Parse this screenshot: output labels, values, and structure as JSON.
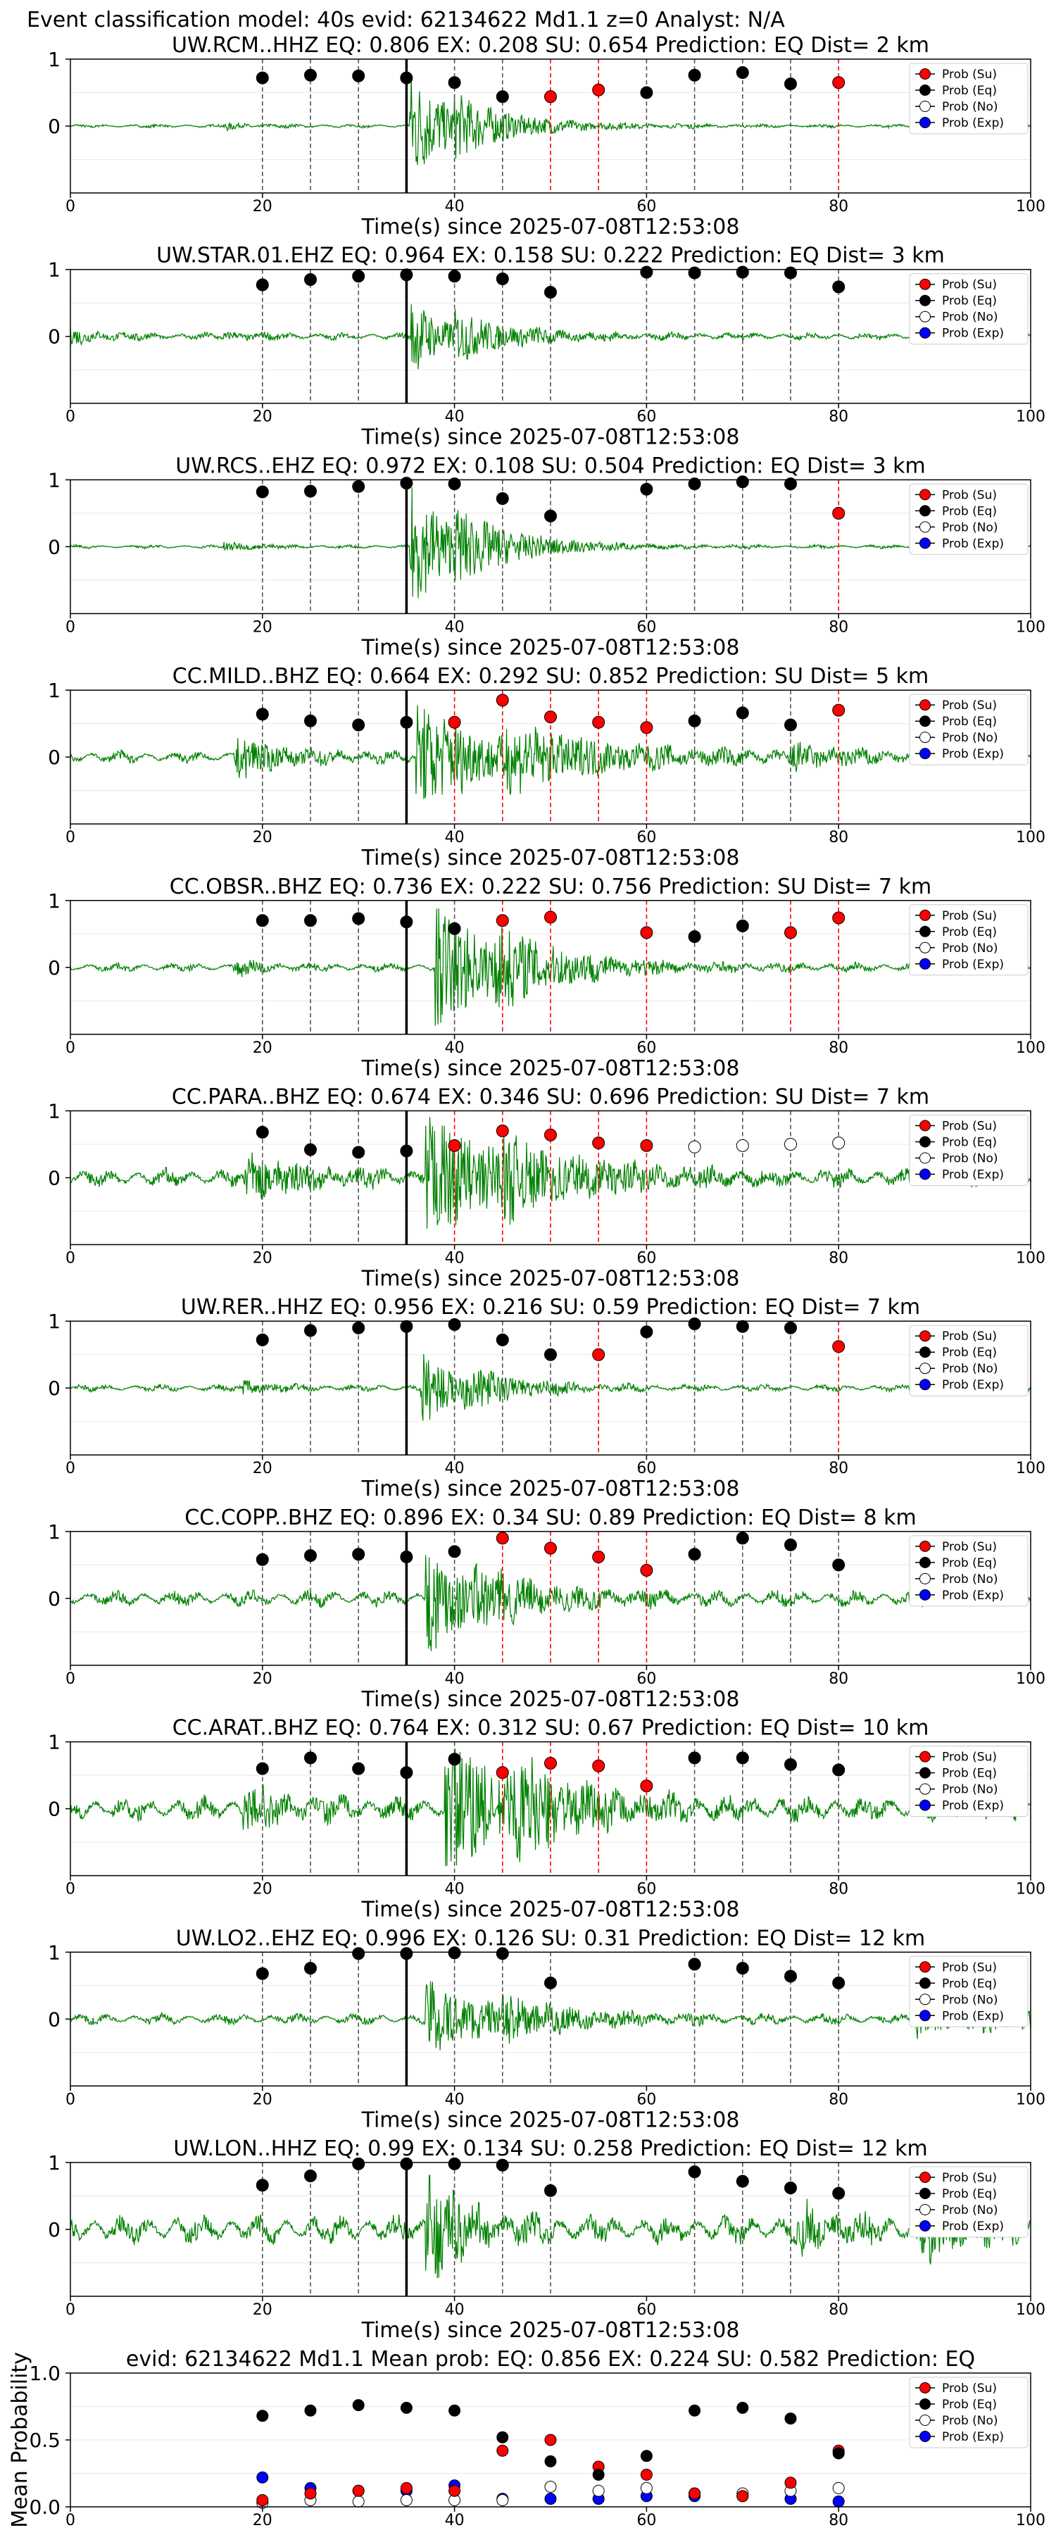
{
  "page_title": "Event classification model: 40s evid: 62134622 Md1.1 z=0 Analyst: N/A",
  "legend_labels": [
    "Prob (Su)",
    "Prob (Eq)",
    "Prob (No)",
    "Prob (Exp)"
  ],
  "colors": {
    "su": "#ff0000",
    "eq": "#000000",
    "no": "#ffffff",
    "exp": "#0000ff",
    "waveform": "#008000",
    "pick_line": "#000000",
    "eq_window_line": "#555555",
    "su_window_line": "#ff0000"
  },
  "chart_data": [
    {
      "type": "scatter",
      "title": "UW.RCM..HHZ   EQ: 0.806  EX: 0.208  SU: 0.654   Prediction: EQ    Dist= 2 km",
      "xlabel": "Time(s) since 2025-07-08T12:53:08",
      "xlim": [
        0,
        100
      ],
      "ylim": [
        -1,
        1
      ],
      "xticks": [
        "0",
        "20",
        "40",
        "60",
        "80",
        "100"
      ],
      "yticks": [
        "1",
        "0"
      ],
      "pick_time": 35,
      "windows": [
        20,
        25,
        30,
        35,
        40,
        45,
        50,
        55,
        60,
        65,
        70,
        75,
        80
      ],
      "winners": [
        "eq",
        "eq",
        "eq",
        "eq",
        "eq",
        "eq",
        "su",
        "su",
        "eq",
        "eq",
        "eq",
        "eq",
        "su"
      ],
      "probs": [
        0.72,
        0.76,
        0.75,
        0.72,
        0.65,
        0.44,
        0.44,
        0.54,
        0.5,
        0.76,
        0.8,
        0.63,
        0.65
      ],
      "waveform": {
        "noise": 0.02,
        "bursts": [
          [
            16,
            3,
            0.05
          ],
          [
            35.3,
            4,
            0.9
          ],
          [
            40,
            8,
            0.25
          ]
        ]
      }
    },
    {
      "type": "scatter",
      "title": "UW.STAR.01.EHZ   EQ: 0.964  EX: 0.158  SU: 0.222   Prediction: EQ    Dist= 3 km",
      "xlabel": "Time(s) since 2025-07-08T12:53:08",
      "xlim": [
        0,
        100
      ],
      "ylim": [
        -1,
        1
      ],
      "xticks": [
        "0",
        "20",
        "40",
        "60",
        "80",
        "100"
      ],
      "yticks": [
        "1",
        "0"
      ],
      "pick_time": 35,
      "windows": [
        20,
        25,
        30,
        35,
        40,
        45,
        50,
        60,
        65,
        70,
        75,
        80
      ],
      "winners": [
        "eq",
        "eq",
        "eq",
        "eq",
        "eq",
        "eq",
        "eq",
        "eq",
        "eq",
        "eq",
        "eq",
        "eq"
      ],
      "probs": [
        0.77,
        0.85,
        0.9,
        0.92,
        0.9,
        0.86,
        0.66,
        0.96,
        0.95,
        0.96,
        0.95,
        0.74
      ],
      "waveform": {
        "noise": 0.04,
        "bursts": [
          [
            0,
            4,
            0.1
          ],
          [
            16,
            3,
            0.06
          ],
          [
            35.5,
            4,
            0.55
          ],
          [
            40,
            8,
            0.2
          ]
        ]
      }
    },
    {
      "type": "scatter",
      "title": "UW.RCS..EHZ   EQ: 0.972  EX: 0.108  SU: 0.504   Prediction: EQ    Dist= 3 km",
      "xlabel": "Time(s) since 2025-07-08T12:53:08",
      "xlim": [
        0,
        100
      ],
      "ylim": [
        -1,
        1
      ],
      "xticks": [
        "0",
        "20",
        "40",
        "60",
        "80",
        "100"
      ],
      "yticks": [
        "1",
        "0"
      ],
      "pick_time": 35,
      "windows": [
        20,
        25,
        30,
        35,
        40,
        45,
        50,
        60,
        65,
        70,
        75,
        80
      ],
      "winners": [
        "eq",
        "eq",
        "eq",
        "eq",
        "eq",
        "eq",
        "eq",
        "eq",
        "eq",
        "eq",
        "eq",
        "su"
      ],
      "probs": [
        0.82,
        0.83,
        0.9,
        0.95,
        0.94,
        0.72,
        0.46,
        0.86,
        0.94,
        0.97,
        0.94,
        0.5
      ],
      "waveform": {
        "noise": 0.02,
        "bursts": [
          [
            16,
            3,
            0.08
          ],
          [
            35.3,
            5,
            0.95
          ],
          [
            40,
            8,
            0.25
          ]
        ]
      }
    },
    {
      "type": "scatter",
      "title": "CC.MILD..BHZ   EQ: 0.664  EX: 0.292  SU: 0.852   Prediction: SU    Dist= 5 km",
      "xlabel": "Time(s) since 2025-07-08T12:53:08",
      "xlim": [
        0,
        100
      ],
      "ylim": [
        -1,
        1
      ],
      "xticks": [
        "0",
        "20",
        "40",
        "60",
        "80",
        "100"
      ],
      "yticks": [
        "1",
        "0"
      ],
      "pick_time": 35,
      "windows": [
        20,
        25,
        30,
        35,
        40,
        45,
        50,
        55,
        60,
        65,
        70,
        75,
        80
      ],
      "winners": [
        "eq",
        "eq",
        "eq",
        "eq",
        "su",
        "su",
        "su",
        "su",
        "su",
        "eq",
        "eq",
        "eq",
        "su"
      ],
      "probs": [
        0.64,
        0.54,
        0.48,
        0.52,
        0.52,
        0.85,
        0.6,
        0.52,
        0.44,
        0.54,
        0.66,
        0.48,
        0.7
      ],
      "waveform": {
        "noise": 0.07,
        "bursts": [
          [
            17,
            5,
            0.3
          ],
          [
            36,
            8,
            0.8
          ],
          [
            45,
            12,
            0.3
          ],
          [
            75,
            6,
            0.15
          ]
        ]
      }
    },
    {
      "type": "scatter",
      "title": "CC.OBSR..BHZ   EQ: 0.736  EX: 0.222  SU: 0.756   Prediction: SU    Dist= 7 km",
      "xlabel": "Time(s) since 2025-07-08T12:53:08",
      "xlim": [
        0,
        100
      ],
      "ylim": [
        -1,
        1
      ],
      "xticks": [
        "0",
        "20",
        "40",
        "60",
        "80",
        "100"
      ],
      "yticks": [
        "1",
        "0"
      ],
      "pick_time": 35,
      "windows": [
        20,
        25,
        30,
        35,
        40,
        45,
        50,
        60,
        65,
        70,
        75,
        80
      ],
      "winners": [
        "eq",
        "eq",
        "eq",
        "eq",
        "eq",
        "su",
        "su",
        "su",
        "eq",
        "eq",
        "su",
        "su"
      ],
      "probs": [
        0.7,
        0.7,
        0.73,
        0.68,
        0.58,
        0.7,
        0.75,
        0.52,
        0.46,
        0.62,
        0.52,
        0.74
      ],
      "waveform": {
        "noise": 0.05,
        "bursts": [
          [
            17,
            3,
            0.1
          ],
          [
            38,
            7,
            0.9
          ],
          [
            44,
            8,
            0.3
          ]
        ]
      }
    },
    {
      "type": "scatter",
      "title": "CC.PARA..BHZ   EQ: 0.674  EX: 0.346  SU: 0.696   Prediction: SU    Dist= 7 km",
      "xlabel": "Time(s) since 2025-07-08T12:53:08",
      "xlim": [
        0,
        100
      ],
      "ylim": [
        -1,
        1
      ],
      "xticks": [
        "0",
        "20",
        "40",
        "60",
        "80",
        "100"
      ],
      "yticks": [
        "1",
        "0"
      ],
      "pick_time": 35,
      "windows": [
        20,
        25,
        30,
        35,
        40,
        45,
        50,
        55,
        60,
        65,
        70,
        75,
        80
      ],
      "winners": [
        "eq",
        "eq",
        "eq",
        "eq",
        "su",
        "su",
        "su",
        "su",
        "su",
        "no",
        "no",
        "no",
        "no"
      ],
      "probs": [
        0.68,
        0.42,
        0.38,
        0.4,
        0.48,
        0.7,
        0.64,
        0.52,
        0.48,
        0.46,
        0.48,
        0.5,
        0.52
      ],
      "waveform": {
        "noise": 0.1,
        "bursts": [
          [
            18,
            6,
            0.35
          ],
          [
            37,
            8,
            0.9
          ],
          [
            45,
            10,
            0.3
          ]
        ]
      }
    },
    {
      "type": "scatter",
      "title": "UW.RER..HHZ   EQ: 0.956  EX: 0.216  SU: 0.59   Prediction: EQ    Dist= 7 km",
      "xlabel": "Time(s) since 2025-07-08T12:53:08",
      "xlim": [
        0,
        100
      ],
      "ylim": [
        -1,
        1
      ],
      "xticks": [
        "0",
        "20",
        "40",
        "60",
        "80",
        "100"
      ],
      "yticks": [
        "1",
        "0"
      ],
      "pick_time": 35,
      "windows": [
        20,
        25,
        30,
        35,
        40,
        45,
        50,
        55,
        60,
        65,
        70,
        75,
        80
      ],
      "winners": [
        "eq",
        "eq",
        "eq",
        "eq",
        "eq",
        "eq",
        "eq",
        "su",
        "eq",
        "eq",
        "eq",
        "eq",
        "su"
      ],
      "probs": [
        0.72,
        0.86,
        0.9,
        0.92,
        0.95,
        0.72,
        0.5,
        0.5,
        0.84,
        0.96,
        0.92,
        0.9,
        0.62
      ],
      "waveform": {
        "noise": 0.04,
        "bursts": [
          [
            18,
            3,
            0.1
          ],
          [
            36.5,
            4,
            0.55
          ],
          [
            41,
            6,
            0.2
          ]
        ]
      }
    },
    {
      "type": "scatter",
      "title": "CC.COPP..BHZ   EQ: 0.896  EX: 0.34  SU: 0.89   Prediction: EQ    Dist= 8 km",
      "xlabel": "Time(s) since 2025-07-08T12:53:08",
      "xlim": [
        0,
        100
      ],
      "ylim": [
        -1,
        1
      ],
      "xticks": [
        "0",
        "20",
        "40",
        "60",
        "80",
        "100"
      ],
      "yticks": [
        "1",
        "0"
      ],
      "pick_time": 35,
      "windows": [
        20,
        25,
        30,
        35,
        40,
        45,
        50,
        55,
        60,
        65,
        70,
        75,
        80
      ],
      "winners": [
        "eq",
        "eq",
        "eq",
        "eq",
        "eq",
        "su",
        "su",
        "su",
        "su",
        "eq",
        "eq",
        "eq",
        "eq"
      ],
      "probs": [
        0.58,
        0.64,
        0.66,
        0.62,
        0.7,
        0.9,
        0.75,
        0.62,
        0.42,
        0.66,
        0.9,
        0.8,
        0.5
      ],
      "waveform": {
        "noise": 0.09,
        "bursts": [
          [
            37,
            4,
            0.9
          ],
          [
            42,
            8,
            0.3
          ]
        ]
      }
    },
    {
      "type": "scatter",
      "title": "CC.ARAT..BHZ   EQ: 0.764  EX: 0.312  SU: 0.67   Prediction: EQ    Dist= 10 km",
      "xlabel": "Time(s) since 2025-07-08T12:53:08",
      "xlim": [
        0,
        100
      ],
      "ylim": [
        -1,
        1
      ],
      "xticks": [
        "0",
        "20",
        "40",
        "60",
        "80",
        "100"
      ],
      "yticks": [
        "1",
        "0"
      ],
      "pick_time": 35,
      "windows": [
        20,
        25,
        30,
        35,
        40,
        45,
        50,
        55,
        60,
        65,
        70,
        75,
        80
      ],
      "winners": [
        "eq",
        "eq",
        "eq",
        "eq",
        "eq",
        "su",
        "su",
        "su",
        "su",
        "eq",
        "eq",
        "eq",
        "eq"
      ],
      "probs": [
        0.6,
        0.76,
        0.6,
        0.54,
        0.74,
        0.54,
        0.68,
        0.64,
        0.34,
        0.76,
        0.76,
        0.66,
        0.58
      ],
      "waveform": {
        "noise": 0.14,
        "bursts": [
          [
            18,
            5,
            0.25
          ],
          [
            39,
            8,
            0.95
          ],
          [
            46,
            6,
            0.4
          ]
        ]
      }
    },
    {
      "type": "scatter",
      "title": "UW.LO2..EHZ   EQ: 0.996  EX: 0.126  SU: 0.31   Prediction: EQ    Dist= 12 km",
      "xlabel": "Time(s) since 2025-07-08T12:53:08",
      "xlim": [
        0,
        100
      ],
      "ylim": [
        -1,
        1
      ],
      "xticks": [
        "0",
        "20",
        "40",
        "60",
        "80",
        "100"
      ],
      "yticks": [
        "1",
        "0"
      ],
      "pick_time": 35,
      "windows": [
        20,
        25,
        30,
        35,
        40,
        45,
        50,
        65,
        70,
        75,
        80
      ],
      "winners": [
        "eq",
        "eq",
        "eq",
        "eq",
        "eq",
        "eq",
        "eq",
        "eq",
        "eq",
        "eq",
        "eq"
      ],
      "probs": [
        0.68,
        0.76,
        0.98,
        0.98,
        0.99,
        0.98,
        0.54,
        0.82,
        0.76,
        0.64,
        0.54
      ],
      "waveform": {
        "noise": 0.06,
        "bursts": [
          [
            37,
            6,
            0.6
          ],
          [
            45,
            8,
            0.2
          ],
          [
            88,
            5,
            0.25
          ],
          [
            95,
            4,
            0.2
          ]
        ]
      }
    },
    {
      "type": "scatter",
      "title": "UW.LON..HHZ   EQ: 0.99  EX: 0.134  SU: 0.258   Prediction: EQ    Dist= 12 km",
      "xlabel": "Time(s) since 2025-07-08T12:53:08",
      "xlim": [
        0,
        100
      ],
      "ylim": [
        -1,
        1
      ],
      "xticks": [
        "0",
        "20",
        "40",
        "60",
        "80",
        "100"
      ],
      "yticks": [
        "1",
        "0"
      ],
      "pick_time": 35,
      "windows": [
        20,
        25,
        30,
        35,
        40,
        45,
        50,
        65,
        70,
        75,
        80
      ],
      "winners": [
        "eq",
        "eq",
        "eq",
        "eq",
        "eq",
        "eq",
        "eq",
        "eq",
        "eq",
        "eq",
        "eq"
      ],
      "probs": [
        0.66,
        0.8,
        0.98,
        0.98,
        0.98,
        0.96,
        0.58,
        0.86,
        0.72,
        0.62,
        0.54
      ],
      "waveform": {
        "noise": 0.16,
        "bursts": [
          [
            37,
            4,
            0.85
          ],
          [
            76,
            4,
            0.3
          ],
          [
            88,
            6,
            0.35
          ]
        ]
      }
    },
    {
      "type": "scatter",
      "title": "evid: 62134622  Md1.1    Mean prob:    EQ: 0.856  EX: 0.224  SU: 0.582    Prediction: EQ",
      "xlim": [
        0,
        100
      ],
      "ylim": [
        0,
        1
      ],
      "ylabel": "Mean Probability",
      "xticks": [
        "0",
        "20",
        "40",
        "60",
        "80",
        "100"
      ],
      "yticks": [
        "1.0",
        "0.5",
        "0.0"
      ],
      "x": [
        20,
        25,
        30,
        35,
        40,
        45,
        50,
        55,
        60,
        65,
        70,
        75,
        80
      ],
      "series": [
        {
          "name": "Prob (Su)",
          "values": [
            0.05,
            0.1,
            0.12,
            0.14,
            0.12,
            0.42,
            0.5,
            0.3,
            0.24,
            0.1,
            0.08,
            0.18,
            0.42
          ]
        },
        {
          "name": "Prob (Eq)",
          "values": [
            0.68,
            0.72,
            0.76,
            0.74,
            0.72,
            0.52,
            0.34,
            0.24,
            0.38,
            0.72,
            0.74,
            0.66,
            0.4
          ]
        },
        {
          "name": "Prob (No)",
          "values": [
            0.03,
            0.05,
            0.04,
            0.05,
            0.05,
            0.05,
            0.15,
            0.12,
            0.14,
            0.1,
            0.1,
            0.12,
            0.14
          ]
        },
        {
          "name": "Prob (Exp)",
          "values": [
            0.22,
            0.14,
            0.12,
            0.12,
            0.16,
            0.06,
            0.06,
            0.06,
            0.08,
            0.08,
            0.08,
            0.06,
            0.04
          ]
        }
      ]
    }
  ]
}
